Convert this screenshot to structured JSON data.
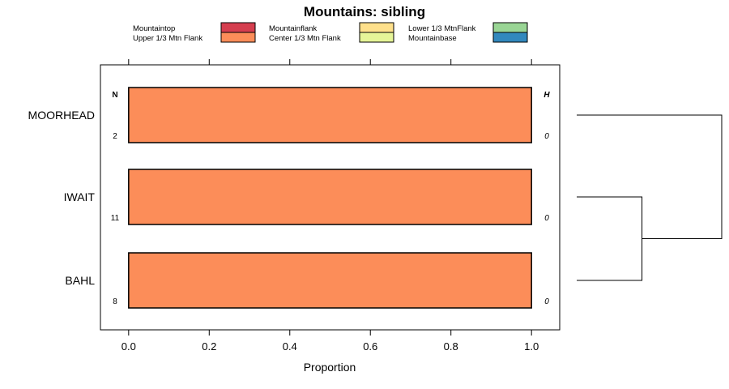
{
  "chart_data": {
    "type": "bar",
    "orientation": "horizontal",
    "stacked": true,
    "title": "Mountains: sibling",
    "xlabel": "Proportion",
    "ylabel": "",
    "xlim": [
      -0.07,
      1.07
    ],
    "x_ticks": [
      "0.0",
      "0.2",
      "0.4",
      "0.6",
      "0.8",
      "1.0"
    ],
    "x_tick_values": [
      0,
      0.2,
      0.4,
      0.6,
      0.8,
      1.0
    ],
    "left_header": "N",
    "right_header": "H",
    "categories": [
      "MOORHEAD",
      "IWAIT",
      "BAHL"
    ],
    "n_values": [
      "2",
      "11",
      "8"
    ],
    "h_values": [
      "0",
      "0",
      "0"
    ],
    "legend": [
      {
        "name": "Mountaintop",
        "color": "#d53e4f"
      },
      {
        "name": "Upper 1/3 Mtn Flank",
        "color": "#fc8d59"
      },
      {
        "name": "Mountainflank",
        "color": "#fee08b"
      },
      {
        "name": "Center 1/3 Mtn Flank",
        "color": "#e6f598"
      },
      {
        "name": "Lower 1/3 MtnFlank",
        "color": "#99d594"
      },
      {
        "name": "Mountainbase",
        "color": "#3288bd"
      }
    ],
    "series": [
      {
        "name": "Mountaintop",
        "values": [
          0,
          0,
          0
        ]
      },
      {
        "name": "Upper 1/3 Mtn Flank",
        "values": [
          1.0,
          1.0,
          1.0
        ]
      },
      {
        "name": "Mountainflank",
        "values": [
          0,
          0,
          0
        ]
      },
      {
        "name": "Center 1/3 Mtn Flank",
        "values": [
          0,
          0,
          0
        ]
      },
      {
        "name": "Lower 1/3 MtnFlank",
        "values": [
          0,
          0,
          0
        ]
      },
      {
        "name": "Mountainbase",
        "values": [
          0,
          0,
          0
        ]
      }
    ],
    "dendrogram": {
      "leaves": [
        "MOORHEAD",
        "IWAIT",
        "BAHL"
      ],
      "merges": [
        {
          "join": [
            "IWAIT",
            "BAHL"
          ],
          "height": 0.45
        },
        {
          "join": [
            "MOORHEAD",
            "IWAIT+BAHL"
          ],
          "height": 1.0
        }
      ]
    }
  }
}
